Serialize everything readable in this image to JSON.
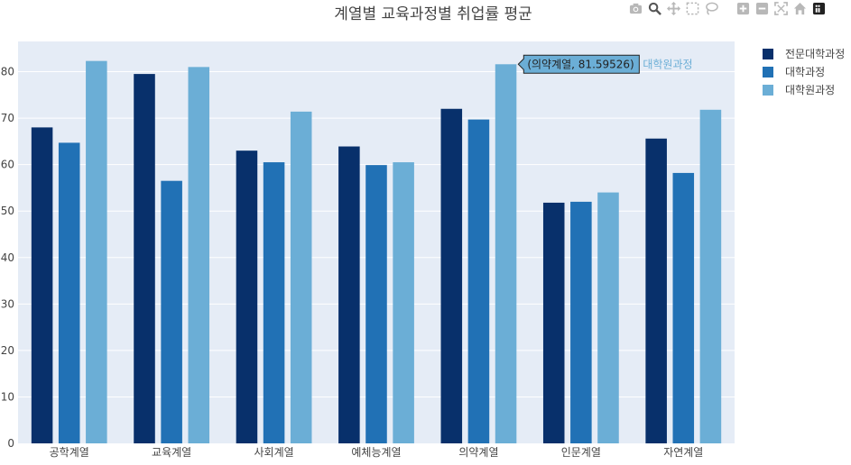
{
  "chart_data": {
    "type": "bar",
    "title": "계열별 교육과정별 취업률 평균",
    "categories": [
      "공학계열",
      "교육계열",
      "사회계열",
      "예체능계열",
      "의약계열",
      "인문계열",
      "자연계열"
    ],
    "series": [
      {
        "name": "전문대학과정",
        "color": "#08306b",
        "values": [
          68.0,
          79.5,
          63.0,
          63.9,
          72.0,
          51.8,
          65.6
        ]
      },
      {
        "name": "대학과정",
        "color": "#2171b5",
        "values": [
          64.7,
          56.5,
          60.5,
          59.9,
          69.7,
          52.0,
          58.2
        ]
      },
      {
        "name": "대학원과정",
        "color": "#6baed6",
        "values": [
          82.3,
          81.0,
          71.4,
          60.5,
          81.59526,
          54.0,
          71.8
        ]
      }
    ],
    "yticks": [
      0,
      10,
      20,
      30,
      40,
      50,
      60,
      70,
      80
    ],
    "ylim": [
      0,
      86.5
    ],
    "xlabel": "",
    "ylabel": "",
    "legend_position": "top-right",
    "grid": true,
    "plot_bgcolor": "#e5ecf6",
    "hover": {
      "text": "(의약계열, 81.59526)",
      "series_name": "대학원과정",
      "category_index": 4,
      "series_index": 2,
      "value": 81.59526
    }
  },
  "modebar": {
    "icons": [
      "camera-icon",
      "zoom-icon",
      "pan-icon",
      "box-select-icon",
      "lasso-icon",
      "zoom-in-icon",
      "zoom-out-icon",
      "autoscale-icon",
      "reset-axes-icon",
      "plotly-logo-icon"
    ]
  }
}
